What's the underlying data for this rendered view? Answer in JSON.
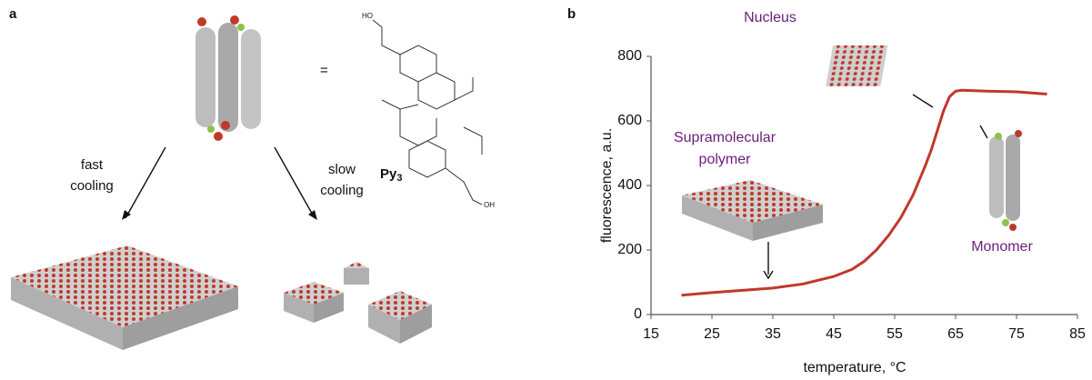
{
  "panel_a": {
    "label": "a",
    "equals": "=",
    "fast_cooling": [
      "fast",
      "cooling"
    ],
    "slow_cooling": [
      "slow",
      "cooling"
    ],
    "molecule_name": "Py",
    "molecule_subscript": "3",
    "structure_labels": [
      "HO",
      "OH"
    ]
  },
  "chart_data": {
    "type": "line",
    "panel_label": "b",
    "x_label": "temperature, °C",
    "y_label": "fluorescence, a.u.",
    "xlim": [
      15,
      85
    ],
    "xticks": [
      15,
      25,
      35,
      45,
      55,
      65,
      75,
      85
    ],
    "ylim": [
      0,
      800
    ],
    "yticks": [
      0,
      200,
      400,
      600,
      800
    ],
    "series": [
      {
        "color": "#c0392b",
        "x": [
          20,
          25,
          30,
          35,
          40,
          45,
          48,
          50,
          52,
          54,
          56,
          58,
          60,
          61,
          62,
          63,
          64,
          65,
          66,
          70,
          75,
          80
        ],
        "values": [
          60,
          68,
          75,
          82,
          95,
          118,
          140,
          165,
          200,
          245,
          300,
          370,
          460,
          510,
          570,
          630,
          675,
          692,
          695,
          692,
          690,
          683
        ]
      }
    ],
    "annotations": {
      "nucleus": "Nucleus",
      "polymer": [
        "Supramolecular",
        "polymer"
      ],
      "monomer": "Monomer"
    }
  }
}
